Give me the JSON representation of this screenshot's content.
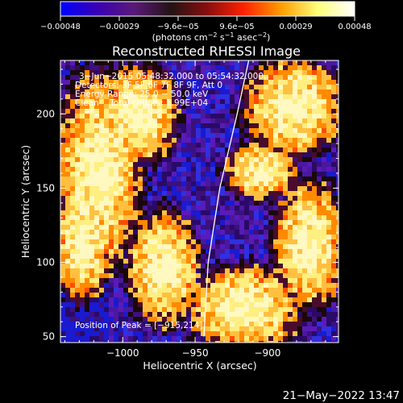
{
  "colorbar": {
    "ticks": [
      "−0.00048",
      "−0.00029",
      "−9.6e−05",
      "9.6e−05",
      "0.00029",
      "0.00048"
    ],
    "unit_prefix": "(photons cm",
    "unit_exp1": "−2",
    "unit_mid": " s",
    "unit_exp2": "−1",
    "unit_mid2": " asec",
    "unit_exp3": "−2",
    "unit_suffix": ")",
    "colormap": [
      "#0000ff",
      "#3a00b4",
      "#5a1a78",
      "#231314",
      "#8a0e0e",
      "#ff2200",
      "#ff9c00",
      "#ffff7a",
      "#ffffff"
    ]
  },
  "chart_data": {
    "type": "heatmap",
    "title": "Reconstructed RHESSI Image",
    "xlabel": "Heliocentric X (arcsec)",
    "ylabel": "Heliocentric Y (arcsec)",
    "xlim": [
      -1043,
      -851
    ],
    "ylim": [
      46,
      236
    ],
    "x_ticks": [
      {
        "value": -1000,
        "label": "−1000"
      },
      {
        "value": -950,
        "label": "−950"
      },
      {
        "value": -900,
        "label": "−900"
      }
    ],
    "y_ticks": [
      {
        "value": 50,
        "label": "50"
      },
      {
        "value": 100,
        "label": "100"
      },
      {
        "value": 150,
        "label": "150"
      },
      {
        "value": 200,
        "label": "200"
      }
    ],
    "limb_points": [
      [
        -944,
        50
      ],
      [
        -941,
        100
      ],
      [
        -933,
        150
      ],
      [
        -921,
        200
      ],
      [
        -913,
        236
      ]
    ],
    "annotations": [
      "3−Jun−2015 05:48:32.000 to 05:54:32.000",
      "Detectors: 3F 5F 6F 7F 8F 9F, Att 0",
      "Energy Range: 25.0 − 50.0 keV",
      "Clean    Total counts: 1.99E+04"
    ],
    "peak_label": "Position of Peak = [−915,214]",
    "colors": {
      "purple_bg": "#3d1080",
      "blue_dot": "#2222d0",
      "limb": "#ffffff"
    }
  },
  "footer": {
    "timestamp": "21−May−2022 13:47"
  }
}
